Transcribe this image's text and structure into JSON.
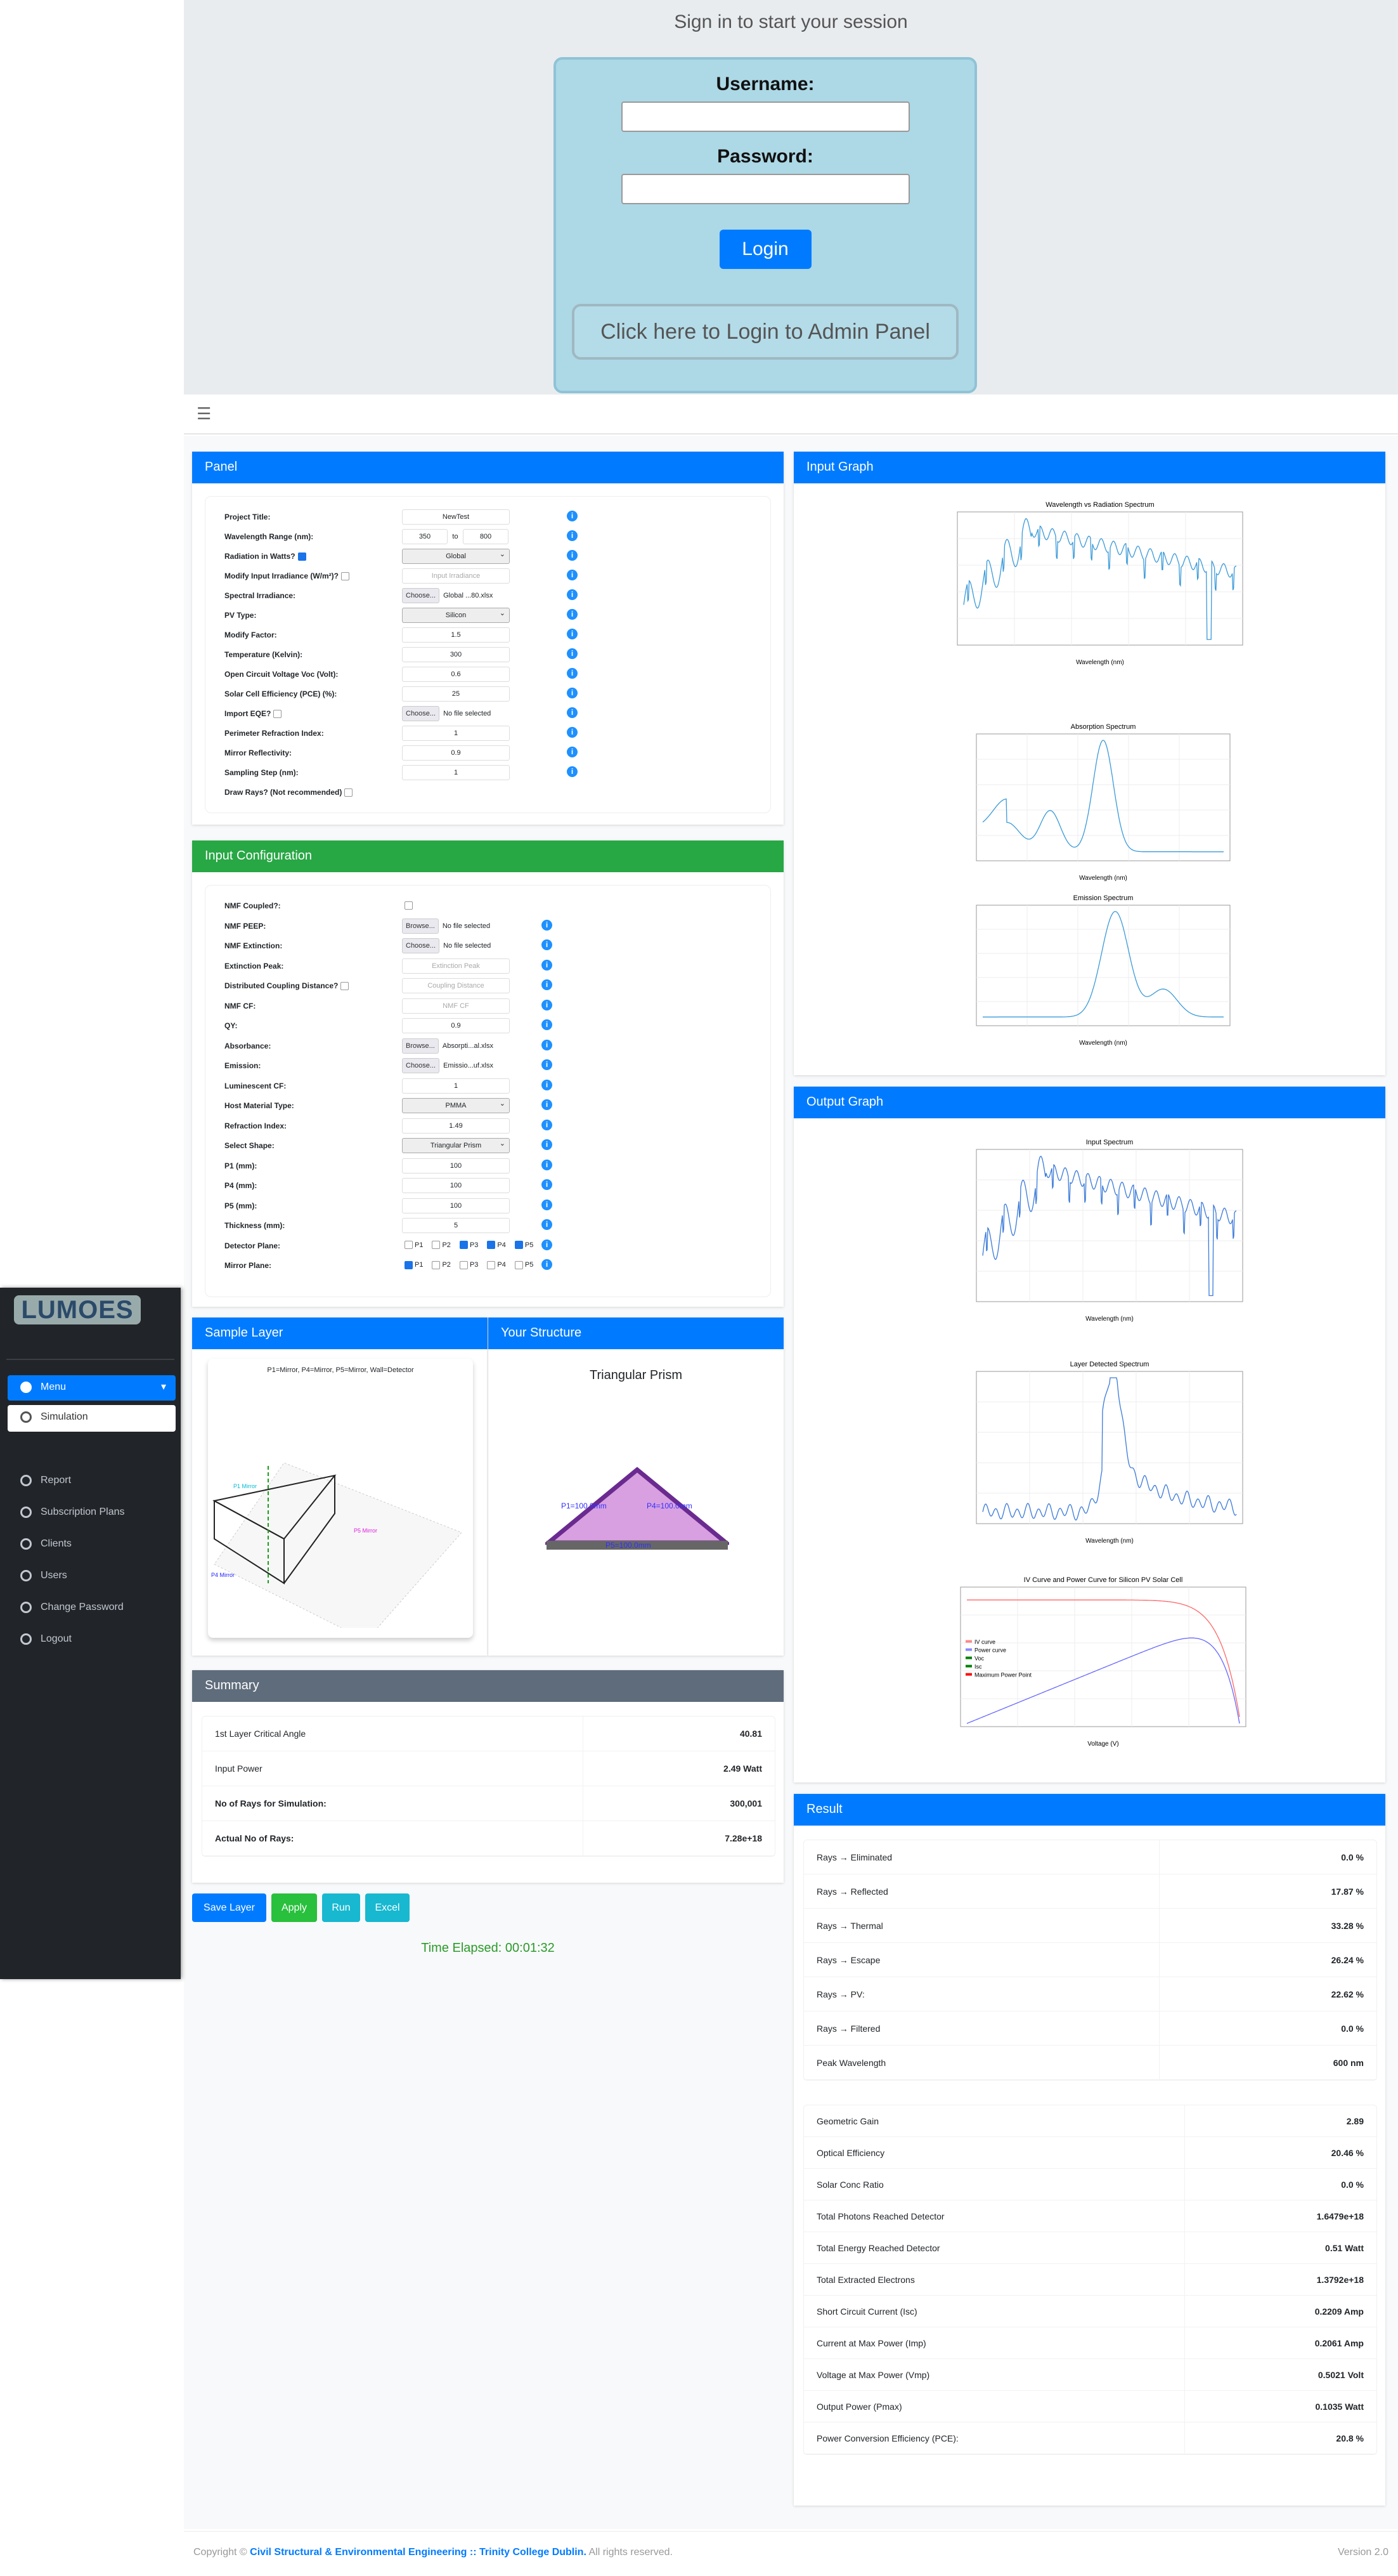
{
  "login": {
    "heading": "Sign in to start your session",
    "username_label": "Username:",
    "password_label": "Password:",
    "login_button": "Login",
    "admin_button": "Click here to Login to Admin Panel"
  },
  "topbar": {
    "menu_icon": "hamburger-icon"
  },
  "sidebar": {
    "logo": "LUMOES",
    "items": [
      {
        "label": "Menu",
        "icon": "home-icon"
      },
      {
        "label": "Simulation"
      },
      {
        "label": "Report"
      },
      {
        "label": "Subscription Plans"
      },
      {
        "label": "Clients"
      },
      {
        "label": "Users"
      },
      {
        "label": "Change Password"
      },
      {
        "label": "Logout"
      }
    ]
  },
  "panel": {
    "title": "Panel",
    "rows": [
      {
        "label": "Project Title:",
        "type": "text",
        "value": "NewTest"
      },
      {
        "label": "Wavelength Range (nm):",
        "type": "range",
        "from": "350",
        "to_label": "to",
        "to": "800"
      },
      {
        "label": "Radiation in Watts?",
        "check": true,
        "type": "select",
        "value": "Global"
      },
      {
        "label": "Modify Input Irradiance (W/m²)?",
        "check": false,
        "type": "placeholder",
        "value": "Input Irradiance"
      },
      {
        "label": "Spectral Irradiance:",
        "type": "file",
        "button": "Choose...",
        "value": "Global ...80.xlsx"
      },
      {
        "label": "PV Type:",
        "type": "select",
        "value": "Silicon"
      },
      {
        "label": "Modify Factor:",
        "type": "text",
        "value": "1.5"
      },
      {
        "label": "Temperature (Kelvin):",
        "type": "text",
        "value": "300"
      },
      {
        "label": "Open Circuit Voltage Voc (Volt):",
        "type": "text",
        "value": "0.6"
      },
      {
        "label": "Solar Cell Efficiency (PCE) (%):",
        "type": "text",
        "value": "25"
      },
      {
        "label": "Import EQE?",
        "check": false,
        "type": "file",
        "button": "Choose...",
        "value": "No file selected"
      },
      {
        "label": "Perimeter Refraction Index:",
        "type": "text",
        "value": "1"
      },
      {
        "label": "Mirror Reflectivity:",
        "type": "text",
        "value": "0.9"
      },
      {
        "label": "Sampling Step (nm):",
        "type": "text",
        "value": "1"
      },
      {
        "label": "Draw Rays? (Not recommended)",
        "check": false,
        "type": "none",
        "noinfo": true
      }
    ]
  },
  "input_config": {
    "title": "Input Configuration",
    "rows": [
      {
        "label": "NMF Coupled?:",
        "type": "checkbox",
        "checked": false,
        "noinfo": true
      },
      {
        "label": "NMF PEEP:",
        "type": "file",
        "button": "Browse...",
        "value": "No file selected"
      },
      {
        "label": "NMF Extinction:",
        "type": "file",
        "button": "Choose...",
        "value": "No file selected"
      },
      {
        "label": "Extinction Peak:",
        "type": "placeholder",
        "value": "Extinction Peak"
      },
      {
        "label": "Distributed Coupling Distance?",
        "check": false,
        "type": "placeholder",
        "value": "Coupling Distance"
      },
      {
        "label": "NMF CF:",
        "type": "placeholder",
        "value": "NMF CF"
      },
      {
        "label": "QY:",
        "type": "text",
        "value": "0.9"
      },
      {
        "label": "Absorbance:",
        "type": "file",
        "button": "Browse...",
        "value": "Absorpti...al.xlsx"
      },
      {
        "label": "Emission:",
        "type": "file",
        "button": "Choose...",
        "value": "Emissio...uf.xlsx"
      },
      {
        "label": "Luminescent CF:",
        "type": "text",
        "value": "1"
      },
      {
        "label": "Host Material Type:",
        "type": "select",
        "value": "PMMA"
      },
      {
        "label": "Refraction Index:",
        "type": "text",
        "value": "1.49"
      },
      {
        "label": "Select Shape:",
        "type": "select",
        "value": "Triangular Prism"
      },
      {
        "label": "P1 (mm):",
        "type": "text",
        "value": "100"
      },
      {
        "label": "P4 (mm):",
        "type": "text",
        "value": "100"
      },
      {
        "label": "P5 (mm):",
        "type": "text",
        "value": "100"
      },
      {
        "label": "Thickness (mm):",
        "type": "text",
        "value": "5"
      },
      {
        "label": "Detector Plane:",
        "type": "planes",
        "planes": [
          {
            "p": "P1",
            "on": false
          },
          {
            "p": "P2",
            "on": false
          },
          {
            "p": "P3",
            "on": true
          },
          {
            "p": "P4",
            "on": true
          },
          {
            "p": "P5",
            "on": true
          }
        ]
      },
      {
        "label": "Mirror Plane:",
        "type": "planes",
        "planes": [
          {
            "p": "P1",
            "on": true
          },
          {
            "p": "P2",
            "on": false
          },
          {
            "p": "P3",
            "on": false
          },
          {
            "p": "P4",
            "on": false
          },
          {
            "p": "P5",
            "on": false
          }
        ]
      }
    ]
  },
  "sample_layer": {
    "title": "Sample Layer",
    "image_caption": "P1=Mirror, P4=Mirror, P5=Mirror, Wall=Detector"
  },
  "structure": {
    "title": "Your Structure",
    "shape": "Triangular Prism",
    "labels": [
      "P1=100.0mm",
      "P4=100.0mm",
      "P5=100.0mm"
    ]
  },
  "summary": {
    "title": "Summary",
    "rows": [
      {
        "label": "1st Layer Critical Angle",
        "value": "40.81",
        "bold": false
      },
      {
        "label": "Input Power",
        "value": "2.49 Watt",
        "bold": false
      },
      {
        "label": "No of Rays for Simulation:",
        "value": "300,001",
        "bold": true
      },
      {
        "label": "Actual No of Rays:",
        "value": "7.28e+18",
        "bold": true
      }
    ]
  },
  "actions": {
    "save": "Save Layer",
    "apply": "Apply",
    "run": "Run",
    "excel": "Excel",
    "time_elapsed": "Time Elapsed: 00:01:32"
  },
  "input_graph": {
    "title": "Input Graph",
    "charts": [
      {
        "title": "Wavelength vs Radiation Spectrum",
        "xlabel": "Wavelength (nm)",
        "ticks": [
          "400",
          "500",
          "600",
          "700",
          "800"
        ]
      },
      {
        "title": "Absorption Spectrum",
        "xlabel": "Wavelength (nm)"
      },
      {
        "title": "Emission Spectrum",
        "xlabel": "Wavelength (nm)"
      }
    ]
  },
  "output_graph": {
    "title": "Output Graph",
    "charts": [
      {
        "title": "Input Spectrum",
        "xlabel": "Wavelength (nm)"
      },
      {
        "title": "Layer Detected Spectrum",
        "xlabel": "Wavelength (nm)"
      },
      {
        "title": "IV Curve and Power Curve for Silicon PV Solar Cell",
        "xlabel": "Voltage (V)",
        "legend": [
          "IV curve",
          "Power curve",
          "Voc",
          "Isc",
          "Maximum Power Point"
        ]
      }
    ]
  },
  "result": {
    "title": "Result",
    "rows1": [
      {
        "label": "Rays → Eliminated",
        "value": "0.0 %"
      },
      {
        "label": "Rays → Reflected",
        "value": "17.87 %"
      },
      {
        "label": "Rays → Thermal",
        "value": "33.28 %"
      },
      {
        "label": "Rays → Escape",
        "value": "26.24 %"
      },
      {
        "label": "Rays → PV:",
        "value": "22.62 %"
      },
      {
        "label": "Rays → Filtered",
        "value": "0.0 %"
      },
      {
        "label": "Peak Wavelength",
        "value": "600 nm"
      }
    ],
    "rows2": [
      {
        "label": "Geometric Gain",
        "value": "2.89"
      },
      {
        "label": "Optical Efficiency",
        "value": "20.46 %"
      },
      {
        "label": "Solar Conc Ratio",
        "value": "0.0 %"
      },
      {
        "label": "Total Photons Reached Detector",
        "value": "1.6479e+18"
      },
      {
        "label": "Total Energy Reached Detector",
        "value": "0.51 Watt"
      },
      {
        "label": "Total Extracted Electrons",
        "value": "1.3792e+18"
      },
      {
        "label": "Short Circuit Current (Isc)",
        "value": "0.2209 Amp"
      },
      {
        "label": "Current at Max Power (Imp)",
        "value": "0.2061 Amp"
      },
      {
        "label": "Voltage at Max Power (Vmp)",
        "value": "0.5021 Volt"
      },
      {
        "label": "Output Power (Pmax)",
        "value": "0.1035 Watt"
      },
      {
        "label": "Power Conversion Efficiency (PCE):",
        "value": "20.8 %"
      }
    ]
  },
  "footer": {
    "copyright": "Copyright ©",
    "link": "Civil Structural & Environmental Engineering :: Trinity College Dublin.",
    "rights": "All rights reserved.",
    "version": "Version 2.0"
  },
  "colors": {
    "primary": "#007bff",
    "success": "#28a745",
    "info": "#17a2b8",
    "summary": "#5f6c7b",
    "sidebar": "#212529",
    "login_box": "#add8e6",
    "curve": "#3a9ad9"
  }
}
